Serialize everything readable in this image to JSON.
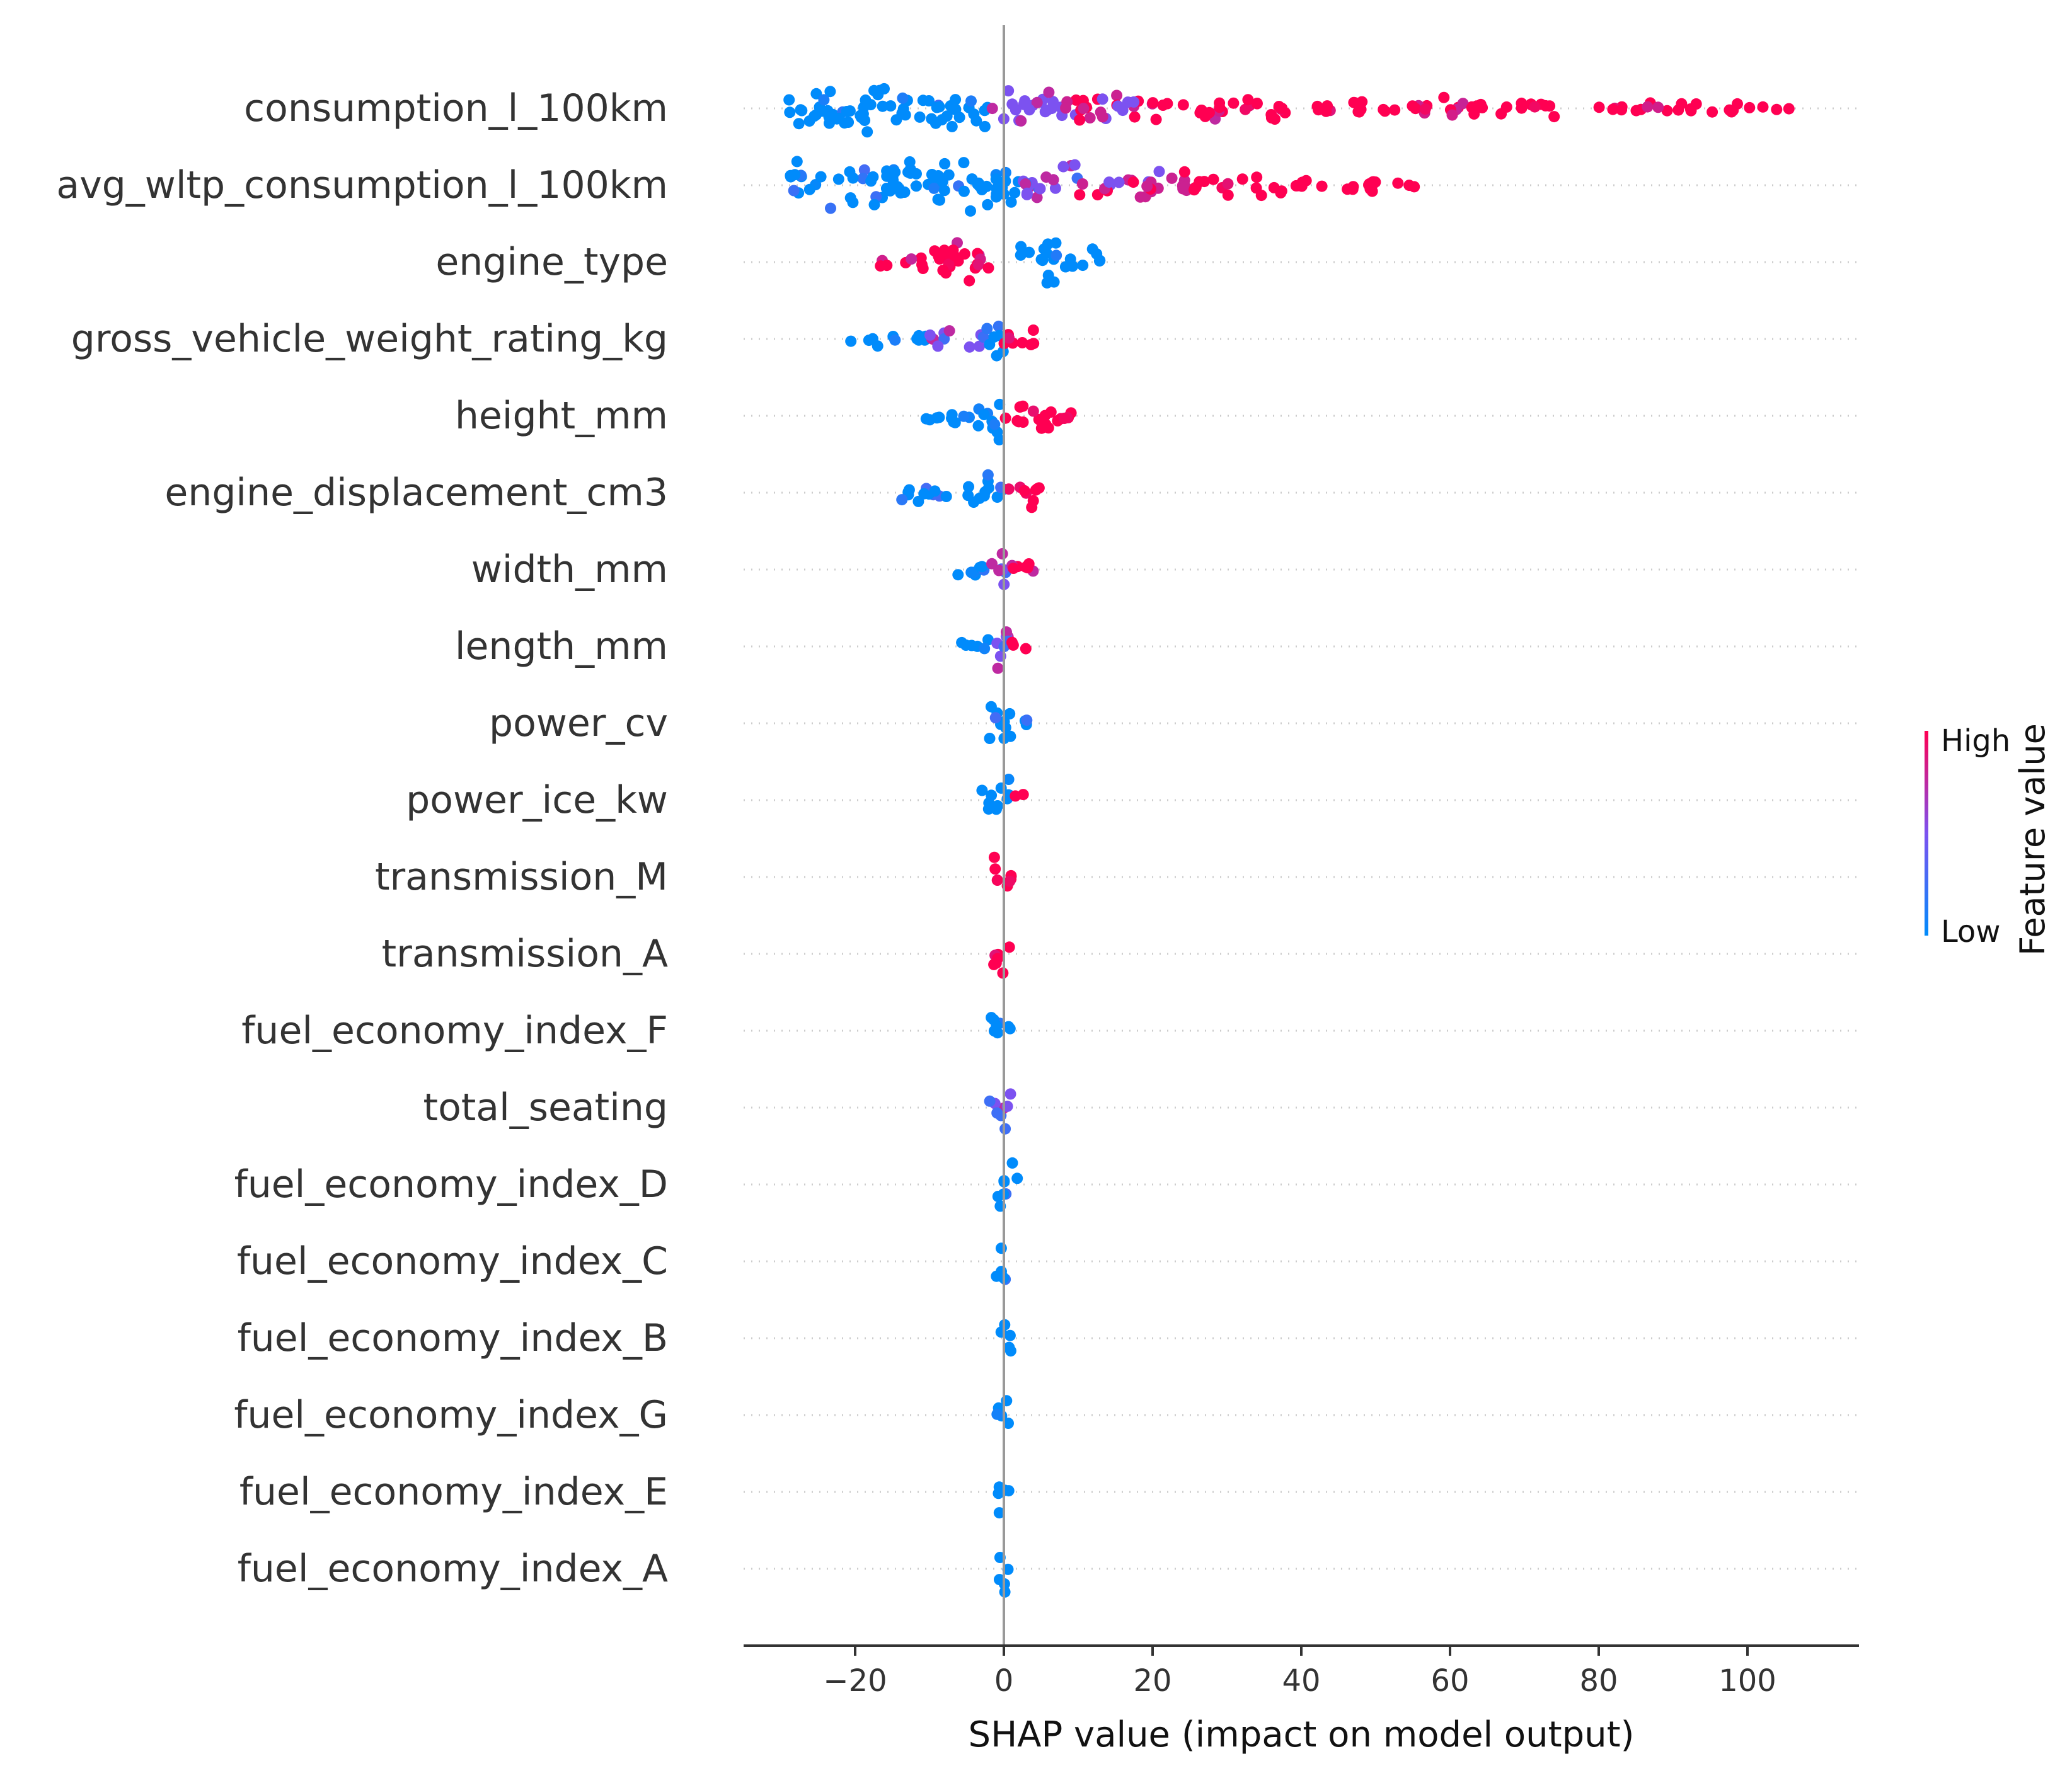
{
  "chart_data": {
    "type": "scatter",
    "subtype": "shap-beeswarm",
    "xlabel": "SHAP value (impact on model output)",
    "xlim": [
      -35,
      115
    ],
    "xticks": [
      -20,
      0,
      20,
      40,
      60,
      80,
      100
    ],
    "xtick_labels": [
      "−20",
      "0",
      "20",
      "40",
      "60",
      "80",
      "100"
    ],
    "zero_line": 0,
    "colors": {
      "low": "#008bfb",
      "mid": "#7c52f0",
      "high": "#ff0052",
      "axis": "#333333",
      "zero_line": "#999999",
      "row_guide": "#cccccc"
    },
    "colorbar": {
      "title": "Feature value",
      "high_label": "High",
      "low_label": "Low"
    },
    "features": [
      {
        "name": "consumption_l_100km",
        "min": -29,
        "max": 108,
        "segments": [
          {
            "from": -29,
            "to": -14,
            "color": "low",
            "density": 1.0
          },
          {
            "from": -14,
            "to": -2,
            "color": "low",
            "density": 0.85
          },
          {
            "from": -2,
            "to": 8,
            "color": "mid",
            "density": 0.7
          },
          {
            "from": 8,
            "to": 20,
            "color": "mid-high",
            "density": 0.75
          },
          {
            "from": 20,
            "to": 38,
            "color": "high",
            "density": 0.45
          },
          {
            "from": 41,
            "to": 75,
            "color": "high",
            "density": 0.3
          },
          {
            "from": 80,
            "to": 108,
            "color": "high",
            "density": 0.1
          }
        ]
      },
      {
        "name": "avg_wltp_consumption_l_100km",
        "min": -29,
        "max": 57,
        "segments": [
          {
            "from": -29,
            "to": -8,
            "color": "low",
            "density": 0.9
          },
          {
            "from": -8,
            "to": 2,
            "color": "low",
            "density": 1.0
          },
          {
            "from": 2,
            "to": 10,
            "color": "mid",
            "density": 0.85
          },
          {
            "from": 10,
            "to": 25,
            "color": "mid-high",
            "density": 0.55
          },
          {
            "from": 25,
            "to": 42,
            "color": "high",
            "density": 0.3
          },
          {
            "from": 42,
            "to": 57,
            "color": "high",
            "density": 0.15
          }
        ]
      },
      {
        "name": "engine_type",
        "min": -17,
        "max": 13,
        "segments": [
          {
            "from": -17,
            "to": -11,
            "color": "high",
            "density": 0.25
          },
          {
            "from": -11,
            "to": -2,
            "color": "high",
            "density": 1.0
          },
          {
            "from": 2,
            "to": 7,
            "color": "low",
            "density": 1.0
          },
          {
            "from": 7,
            "to": 13,
            "color": "low",
            "density": 0.4
          }
        ]
      },
      {
        "name": "gross_vehicle_weight_rating_kg",
        "min": -23,
        "max": 5,
        "segments": [
          {
            "from": -23,
            "to": -10,
            "color": "low",
            "density": 0.12
          },
          {
            "from": -10,
            "to": -3,
            "color": "mid",
            "density": 0.35
          },
          {
            "from": -3,
            "to": 0,
            "color": "low",
            "density": 1.0
          },
          {
            "from": 0,
            "to": 5,
            "color": "high",
            "density": 0.45
          }
        ]
      },
      {
        "name": "height_mm",
        "min": -11,
        "max": 13,
        "segments": [
          {
            "from": -11,
            "to": -3,
            "color": "low",
            "density": 0.4
          },
          {
            "from": -3,
            "to": 0,
            "color": "low",
            "density": 1.0
          },
          {
            "from": 0,
            "to": 7,
            "color": "high",
            "density": 0.6
          },
          {
            "from": 7,
            "to": 13,
            "color": "high",
            "density": 0.2
          }
        ]
      },
      {
        "name": "engine_displacement_cm3",
        "min": -14,
        "max": 5,
        "segments": [
          {
            "from": -14,
            "to": -5,
            "color": "low",
            "density": 0.3
          },
          {
            "from": -5,
            "to": 0,
            "color": "low",
            "density": 0.9
          },
          {
            "from": 0,
            "to": 5,
            "color": "high",
            "density": 0.6
          }
        ]
      },
      {
        "name": "width_mm",
        "min": -7,
        "max": 6,
        "segments": [
          {
            "from": -7,
            "to": -2,
            "color": "low",
            "density": 0.35
          },
          {
            "from": -2,
            "to": 1,
            "color": "mid",
            "density": 1.0
          },
          {
            "from": 1,
            "to": 6,
            "color": "high",
            "density": 0.35
          }
        ]
      },
      {
        "name": "length_mm",
        "min": -7,
        "max": 3,
        "segments": [
          {
            "from": -7,
            "to": -2,
            "color": "low",
            "density": 0.25
          },
          {
            "from": -2,
            "to": 1,
            "color": "mid",
            "density": 1.0
          },
          {
            "from": 1,
            "to": 3,
            "color": "high",
            "density": 0.3
          }
        ]
      },
      {
        "name": "power_cv",
        "min": -3,
        "max": 4,
        "segments": [
          {
            "from": -3,
            "to": 1,
            "color": "low",
            "density": 1.0
          },
          {
            "from": 1,
            "to": 4,
            "color": "low",
            "density": 0.2
          }
        ]
      },
      {
        "name": "power_ice_kw",
        "min": -3,
        "max": 3,
        "segments": [
          {
            "from": -3,
            "to": 1,
            "color": "low",
            "density": 1.0
          },
          {
            "from": 1,
            "to": 3,
            "color": "high",
            "density": 0.2
          }
        ]
      },
      {
        "name": "transmission_M",
        "min": -1.5,
        "max": 1,
        "segments": [
          {
            "from": -1.5,
            "to": 1,
            "color": "high",
            "density": 1.0
          }
        ]
      },
      {
        "name": "transmission_A",
        "min": -1.5,
        "max": 1,
        "segments": [
          {
            "from": -1.5,
            "to": 1,
            "color": "high",
            "density": 1.0
          }
        ]
      },
      {
        "name": "fuel_economy_index_F",
        "min": -2,
        "max": 1,
        "segments": [
          {
            "from": -2,
            "to": 1,
            "color": "low",
            "density": 1.0
          }
        ]
      },
      {
        "name": "total_seating",
        "min": -2,
        "max": 1,
        "segments": [
          {
            "from": -2,
            "to": 1,
            "color": "mid",
            "density": 1.0
          }
        ]
      },
      {
        "name": "fuel_economy_index_D",
        "min": -1,
        "max": 2,
        "segments": [
          {
            "from": -1,
            "to": 2,
            "color": "low",
            "density": 1.0
          }
        ]
      },
      {
        "name": "fuel_economy_index_C",
        "min": -1,
        "max": 1,
        "segments": [
          {
            "from": -1,
            "to": 1,
            "color": "low",
            "density": 1.0
          }
        ]
      },
      {
        "name": "fuel_economy_index_B",
        "min": -1,
        "max": 1,
        "segments": [
          {
            "from": -1,
            "to": 1,
            "color": "low",
            "density": 1.0
          }
        ]
      },
      {
        "name": "fuel_economy_index_G",
        "min": -1,
        "max": 1,
        "segments": [
          {
            "from": -1,
            "to": 1,
            "color": "low",
            "density": 1.0
          }
        ]
      },
      {
        "name": "fuel_economy_index_E",
        "min": -1,
        "max": 1,
        "segments": [
          {
            "from": -1,
            "to": 1,
            "color": "low",
            "density": 1.0
          }
        ]
      },
      {
        "name": "fuel_economy_index_A",
        "min": -1,
        "max": 1,
        "segments": [
          {
            "from": -1,
            "to": 1,
            "color": "low",
            "density": 1.0
          }
        ]
      }
    ]
  }
}
